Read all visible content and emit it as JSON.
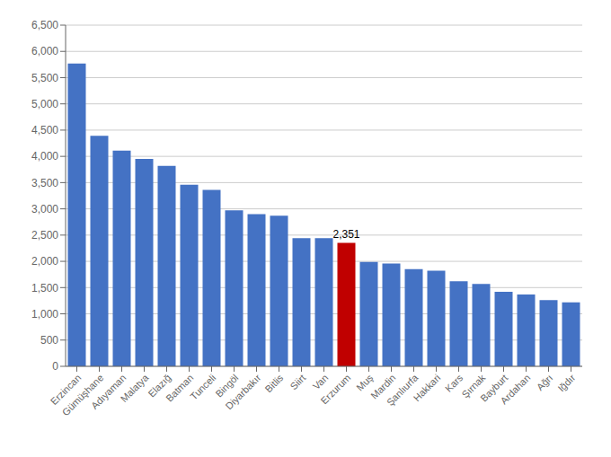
{
  "chart_data": {
    "type": "bar",
    "categories": [
      "Erzincan",
      "Gümüşhane",
      "Adıyaman",
      "Malatya",
      "Elazığ",
      "Batman",
      "Tunceli",
      "Bingöl",
      "Diyarbakır",
      "Bitlis",
      "Siirt",
      "Van",
      "Erzurum",
      "Muş",
      "Mardin",
      "Şanlıurfa",
      "Hakkari",
      "Kars",
      "Şırnak",
      "Bayburt",
      "Ardahan",
      "Ağrı",
      "Iğdır"
    ],
    "values": [
      5770,
      4390,
      4110,
      3950,
      3820,
      3460,
      3360,
      2970,
      2900,
      2870,
      2440,
      2440,
      2351,
      1990,
      1960,
      1850,
      1820,
      1620,
      1570,
      1420,
      1370,
      1260,
      1220
    ],
    "colors": [
      "#4472C4",
      "#4472C4",
      "#4472C4",
      "#4472C4",
      "#4472C4",
      "#4472C4",
      "#4472C4",
      "#4472C4",
      "#4472C4",
      "#4472C4",
      "#4472C4",
      "#4472C4",
      "#C00000",
      "#4472C4",
      "#4472C4",
      "#4472C4",
      "#4472C4",
      "#4472C4",
      "#4472C4",
      "#4472C4",
      "#4472C4",
      "#4472C4",
      "#4472C4"
    ],
    "annotations": [
      {
        "text": "2,351",
        "category": "Erzurum",
        "value": 2351
      }
    ],
    "ylim": [
      0,
      6500
    ],
    "yticks": [
      0,
      500,
      {
        "value": 1000,
        "label": "1,000"
      },
      {
        "value": 1500,
        "label": "1,500"
      },
      {
        "value": 2000,
        "label": "2,000"
      },
      {
        "value": 2500,
        "label": "2,500"
      },
      {
        "value": 3000,
        "label": "3,000"
      },
      {
        "value": 3500,
        "label": "3,500"
      },
      {
        "value": 4000,
        "label": "4,000"
      },
      {
        "value": 4500,
        "label": "4,500"
      },
      {
        "value": 5000,
        "label": "5,000"
      },
      {
        "value": 5500,
        "label": "5,500"
      },
      {
        "value": 6000,
        "label": "6,000"
      },
      {
        "value": 6500,
        "label": "6,500"
      }
    ],
    "grid": true
  }
}
